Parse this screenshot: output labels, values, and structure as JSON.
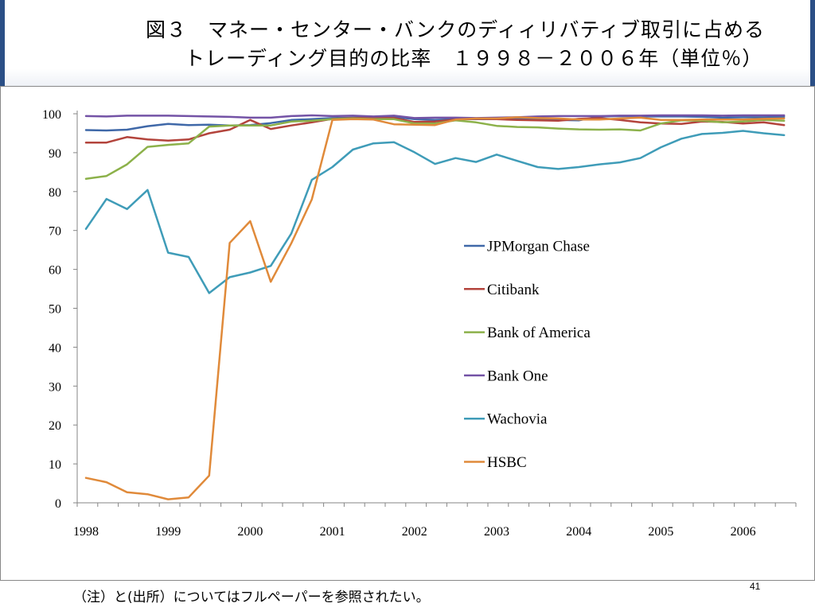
{
  "slide": {
    "title_line1": "図３　マネー・センター・バンクのディィリバティブ取引に占める",
    "title_line2": "トレーディング目的の比率　１９９８－２００６年（単位％）",
    "footer_note": "（注）と(出所）についてはフルペーパーを参照されたい。",
    "page_number": "41"
  },
  "chart_data": {
    "type": "line",
    "title": "図３　マネー・センター・バンクのディィリバティブ取引に占めるトレーディング目的の比率　１９９８－２００６年（単位％）",
    "xlabel": "",
    "ylabel": "",
    "ylim": [
      0,
      100
    ],
    "xlim": [
      1998,
      2006.75
    ],
    "y_ticks": [
      "0",
      "10",
      "20",
      "30",
      "40",
      "50",
      "60",
      "70",
      "80",
      "90",
      "100"
    ],
    "x_ticks": [
      "1998",
      "1999",
      "2000",
      "2001",
      "2002",
      "2003",
      "2004",
      "2005",
      "2006"
    ],
    "grid": false,
    "legend_position": "center-right",
    "x": [
      1998.0,
      1998.25,
      1998.5,
      1998.75,
      1999.0,
      1999.25,
      1999.5,
      1999.75,
      2000.0,
      2000.25,
      2000.5,
      2000.75,
      2001.0,
      2001.25,
      2001.5,
      2001.75,
      2002.0,
      2002.25,
      2002.5,
      2002.75,
      2003.0,
      2003.25,
      2003.5,
      2003.75,
      2004.0,
      2004.25,
      2004.5,
      2004.75,
      2005.0,
      2005.25,
      2005.5,
      2005.75,
      2006.0,
      2006.25,
      2006.5
    ],
    "series": [
      {
        "name": "JPMorgan Chase",
        "color": "#3f68a8",
        "values": [
          95.8,
          95.7,
          95.9,
          96.8,
          97.4,
          97.1,
          97.2,
          97.0,
          97.1,
          97.6,
          98.4,
          98.6,
          98.9,
          99.0,
          99.1,
          99.2,
          98.6,
          98.4,
          98.6,
          98.6,
          98.6,
          98.7,
          98.6,
          98.4,
          98.3,
          99.3,
          99.4,
          99.3,
          99.3,
          99.3,
          99.2,
          99.0,
          99.1,
          99.1,
          99.2
        ]
      },
      {
        "name": "Citibank",
        "color": "#b3443c",
        "values": [
          92.6,
          92.6,
          94.0,
          93.4,
          93.1,
          93.4,
          95.0,
          95.9,
          98.4,
          96.1,
          97.0,
          97.8,
          98.7,
          98.9,
          98.9,
          98.9,
          97.9,
          98.0,
          98.5,
          98.7,
          98.6,
          98.4,
          98.3,
          98.2,
          98.7,
          98.9,
          98.4,
          97.8,
          97.5,
          97.4,
          98.0,
          97.9,
          97.5,
          97.8,
          97.1
        ]
      },
      {
        "name": "Bank of America",
        "color": "#8cb14a",
        "values": [
          83.3,
          84.0,
          87.0,
          91.5,
          92.0,
          92.4,
          96.7,
          97.0,
          97.0,
          97.0,
          98.0,
          98.2,
          98.6,
          98.8,
          98.6,
          98.6,
          97.5,
          97.5,
          98.3,
          97.8,
          96.9,
          96.6,
          96.5,
          96.2,
          96.0,
          95.9,
          96.0,
          95.7,
          97.5,
          98.3,
          98.2,
          97.8,
          98.0,
          98.4,
          98.2
        ]
      },
      {
        "name": "Bank One",
        "color": "#7453a6",
        "values": [
          99.4,
          99.3,
          99.5,
          99.5,
          99.5,
          99.4,
          99.3,
          99.2,
          99.0,
          99.0,
          99.4,
          99.6,
          99.4,
          99.5,
          99.3,
          99.5,
          98.9,
          99.0,
          99.0,
          98.9,
          99.0,
          99.1,
          99.3,
          99.4,
          99.4,
          99.4,
          99.5,
          99.5,
          99.6,
          99.6,
          99.6,
          99.5,
          99.6,
          99.6,
          99.6
        ]
      },
      {
        "name": "Wachovia",
        "color": "#3f9cb8",
        "values": [
          70.4,
          78.1,
          75.5,
          80.4,
          64.3,
          63.2,
          53.9,
          58.0,
          59.2,
          60.9,
          69.2,
          83.0,
          86.3,
          90.8,
          92.4,
          92.7,
          90.1,
          87.1,
          88.6,
          87.6,
          89.5,
          87.9,
          86.3,
          85.8,
          86.3,
          87.0,
          87.5,
          88.6,
          91.4,
          93.6,
          94.8,
          95.1,
          95.6,
          95.0,
          94.5
        ]
      },
      {
        "name": "HSBC",
        "color": "#e08a3a",
        "values": [
          6.4,
          5.3,
          2.7,
          2.2,
          0.9,
          1.4,
          7.0,
          66.8,
          72.4,
          56.8,
          66.7,
          78.0,
          98.4,
          98.6,
          98.5,
          97.3,
          97.2,
          97.1,
          98.5,
          98.8,
          98.8,
          99.1,
          98.9,
          98.8,
          98.5,
          98.5,
          98.8,
          99.0,
          98.4,
          98.4,
          98.5,
          98.5,
          98.5,
          98.7,
          98.8
        ]
      }
    ]
  }
}
